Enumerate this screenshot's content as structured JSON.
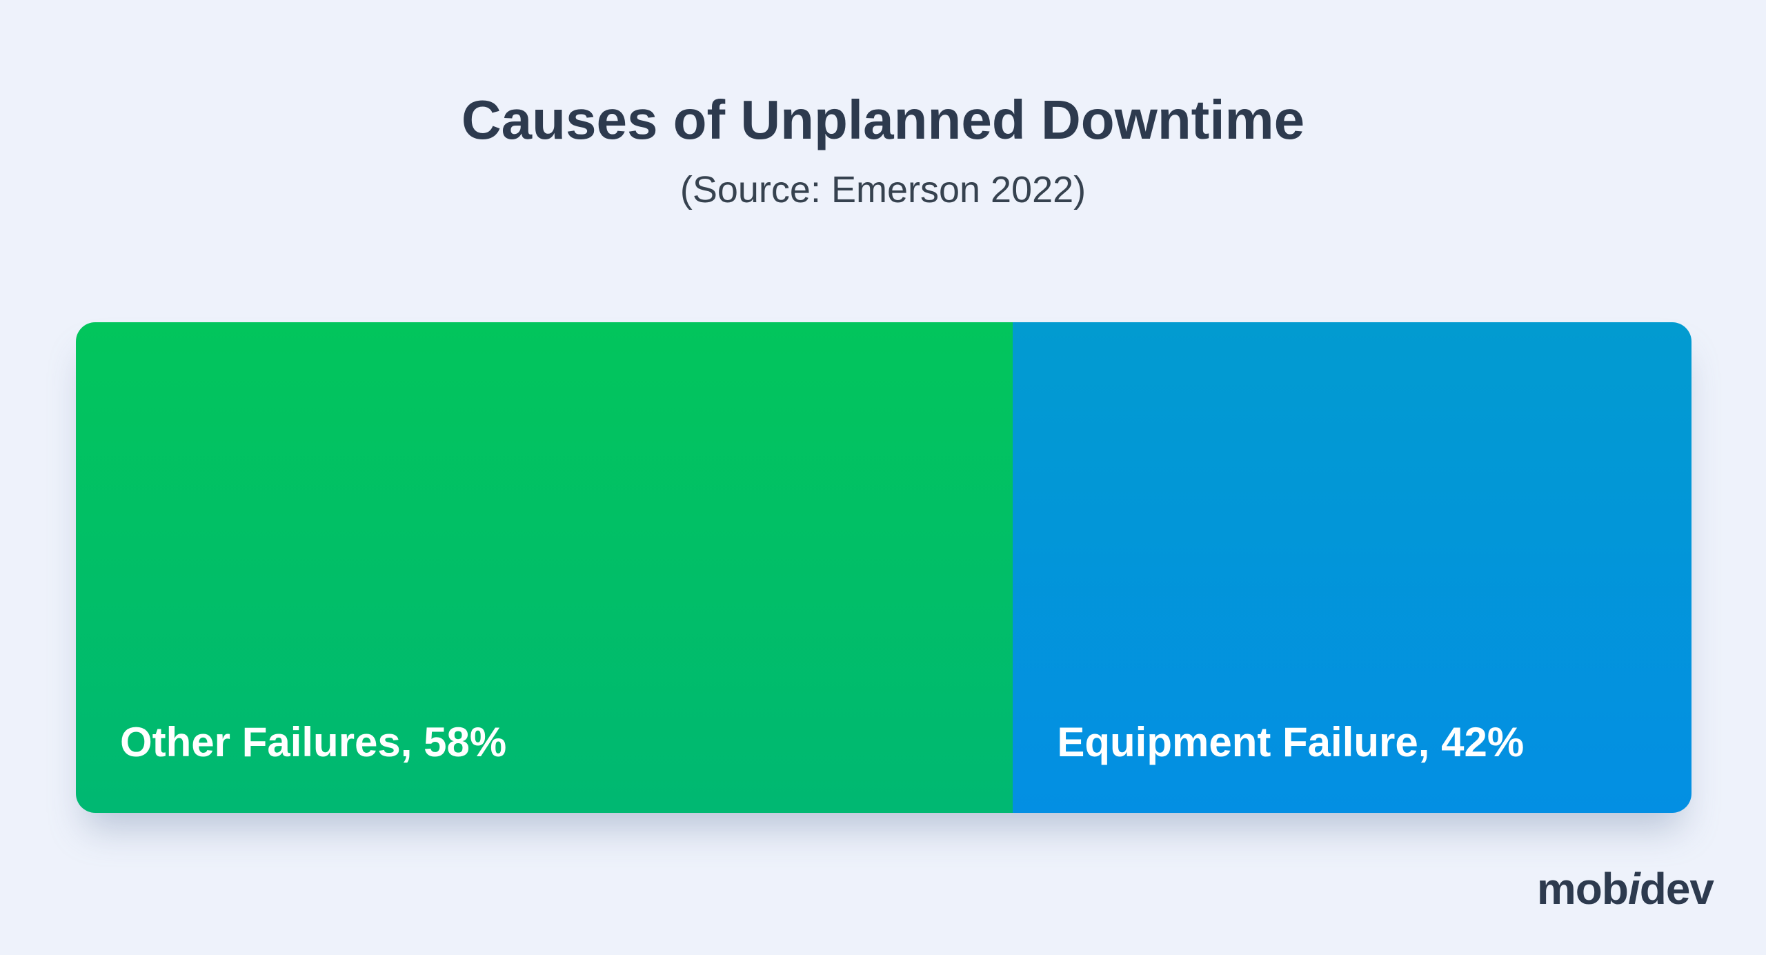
{
  "page": {
    "background": "#eef2fb",
    "text_color": "#2d3a4e"
  },
  "header": {
    "title": "Causes of Unplanned Downtime",
    "subtitle": "(Source: Emerson 2022)"
  },
  "chart_data": {
    "type": "bar",
    "variant": "horizontal-stacked-percentage",
    "title": "Causes of Unplanned Downtime",
    "subtitle": "(Source: Emerson 2022)",
    "source": "Emerson 2022",
    "categories": [
      "Other Failures",
      "Equipment Failure"
    ],
    "values": [
      58,
      42
    ],
    "unit": "%",
    "xlim": [
      0,
      100
    ],
    "grid": false,
    "legend_position": "none",
    "data_label_color": "#ffffff",
    "segments": [
      {
        "name": "Other Failures",
        "value": 58,
        "label": "Other Failures, 58%",
        "gradient_top": "#02c55c",
        "gradient_bottom": "#00b872"
      },
      {
        "name": "Equipment Failure",
        "value": 42,
        "label": "Equipment Failure, 42%",
        "gradient_top": "#029bd0",
        "gradient_bottom": "#038fe3"
      }
    ]
  },
  "footer": {
    "logo": {
      "prefix": "mob",
      "accent": "i",
      "suffix": "dev"
    }
  }
}
